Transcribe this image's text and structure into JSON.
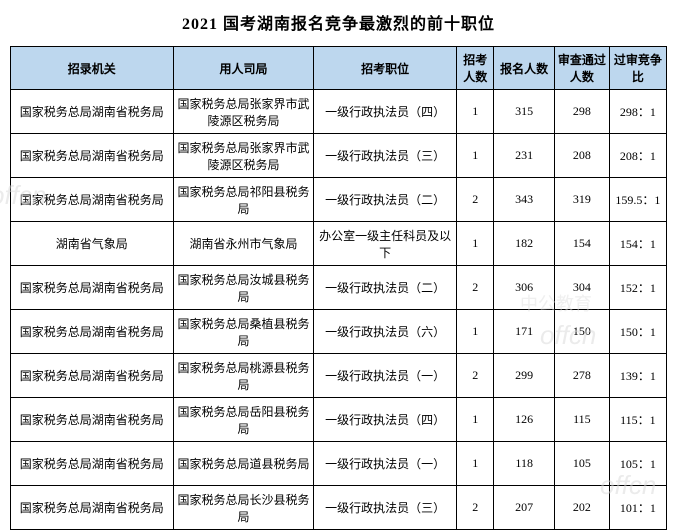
{
  "title": "2021 国考湖南报名竞争最激烈的前十职位",
  "headers": {
    "agency": "招录机关",
    "dept": "用人司局",
    "position": "招考职位",
    "recruit": "招考人数",
    "apply": "报名人数",
    "pass": "审查通过人数",
    "ratio": "过审竞争比"
  },
  "rows": [
    {
      "agency": "国家税务总局湖南省税务局",
      "dept": "国家税务总局张家界市武陵源区税务局",
      "position": "一级行政执法员（四）",
      "recruit": "1",
      "apply": "315",
      "pass": "298",
      "ratio": "298：1"
    },
    {
      "agency": "国家税务总局湖南省税务局",
      "dept": "国家税务总局张家界市武陵源区税务局",
      "position": "一级行政执法员（三）",
      "recruit": "1",
      "apply": "231",
      "pass": "208",
      "ratio": "208：1"
    },
    {
      "agency": "国家税务总局湖南省税务局",
      "dept": "国家税务总局祁阳县税务局",
      "position": "一级行政执法员（二）",
      "recruit": "2",
      "apply": "343",
      "pass": "319",
      "ratio": "159.5：1"
    },
    {
      "agency": "湖南省气象局",
      "dept": "湖南省永州市气象局",
      "position": "办公室一级主任科员及以下",
      "recruit": "1",
      "apply": "182",
      "pass": "154",
      "ratio": "154：1"
    },
    {
      "agency": "国家税务总局湖南省税务局",
      "dept": "国家税务总局汝城县税务局",
      "position": "一级行政执法员（二）",
      "recruit": "2",
      "apply": "306",
      "pass": "304",
      "ratio": "152：1"
    },
    {
      "agency": "国家税务总局湖南省税务局",
      "dept": "国家税务总局桑植县税务局",
      "position": "一级行政执法员（六）",
      "recruit": "1",
      "apply": "171",
      "pass": "150",
      "ratio": "150：1"
    },
    {
      "agency": "国家税务总局湖南省税务局",
      "dept": "国家税务总局桃源县税务局",
      "position": "一级行政执法员（一）",
      "recruit": "2",
      "apply": "299",
      "pass": "278",
      "ratio": "139：1"
    },
    {
      "agency": "国家税务总局湖南省税务局",
      "dept": "国家税务总局岳阳县税务局",
      "position": "一级行政执法员（四）",
      "recruit": "1",
      "apply": "126",
      "pass": "115",
      "ratio": "115：1"
    },
    {
      "agency": "国家税务总局湖南省税务局",
      "dept": "国家税务总局道县税务局",
      "position": "一级行政执法员（一）",
      "recruit": "1",
      "apply": "118",
      "pass": "105",
      "ratio": "105：1"
    },
    {
      "agency": "国家税务总局湖南省税务局",
      "dept": "国家税务总局长沙县税务局",
      "position": "一级行政执法员（三）",
      "recruit": "2",
      "apply": "207",
      "pass": "202",
      "ratio": "101：1"
    }
  ],
  "watermark": "offcn",
  "watermark_cn": "中公教育",
  "styling": {
    "header_bg": "#bdd7ee",
    "border_color": "#000000",
    "font_size_title": 16,
    "font_size_cell": 12,
    "watermark_color": "#d9d9d9"
  }
}
